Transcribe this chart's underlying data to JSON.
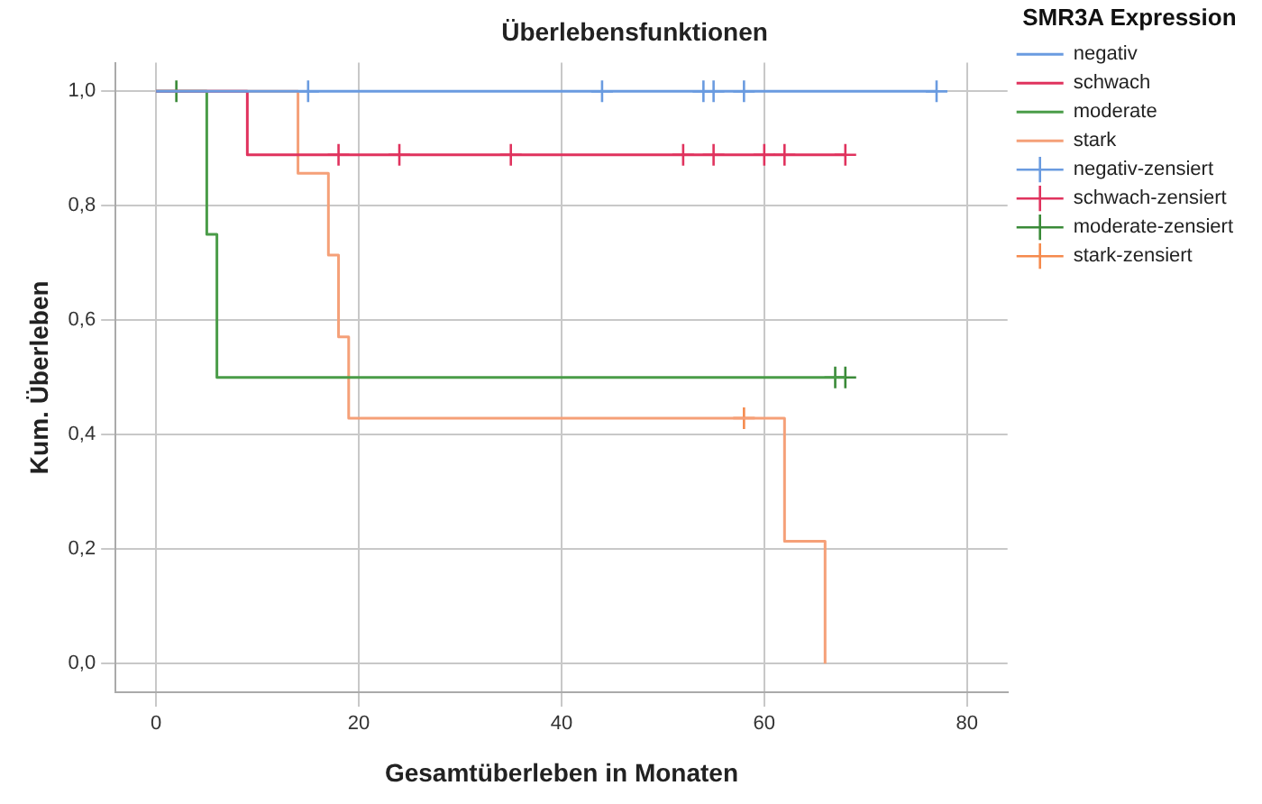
{
  "chart_data": {
    "type": "step",
    "title": "Überlebensfunktionen",
    "xlabel": "Gesamtüberleben in Monaten",
    "ylabel": "Kum. Überleben",
    "legend_title": "SMR3A Expression",
    "xlim": [
      -4,
      84
    ],
    "xticks": [
      0,
      20,
      40,
      60,
      80
    ],
    "ylim": [
      -0.05,
      1.05
    ],
    "yticks": [
      {
        "value": 0,
        "label": "0,0"
      },
      {
        "value": 0.2,
        "label": "0,2"
      },
      {
        "value": 0.4,
        "label": "0,4"
      },
      {
        "value": 0.6,
        "label": "0,6"
      },
      {
        "value": 0.8,
        "label": "0,8"
      },
      {
        "value": 1,
        "label": "1,0"
      }
    ],
    "grid": true,
    "legend": "right",
    "series": [
      {
        "name": "negativ",
        "color": "#6a9be0",
        "marker": "none",
        "x": [
          0,
          77
        ],
        "values": [
          1,
          1
        ]
      },
      {
        "name": "schwach",
        "color": "#e0335e",
        "marker": "none",
        "x": [
          0,
          9,
          68
        ],
        "values": [
          1,
          0.889,
          0.889
        ]
      },
      {
        "name": "moderate",
        "color": "#4a9c48",
        "marker": "none",
        "x": [
          0,
          5,
          6,
          68
        ],
        "values": [
          1,
          0.75,
          0.5,
          0.5
        ]
      },
      {
        "name": "stark",
        "color": "#f5a078",
        "marker": "none",
        "x": [
          0,
          14,
          17,
          18,
          19,
          62,
          66
        ],
        "values": [
          1,
          0.857,
          0.714,
          0.571,
          0.429,
          0.214,
          0
        ]
      },
      {
        "name": "negativ-zensiert",
        "type": "scatter",
        "color": "#6a9be0",
        "marker": "cross",
        "x": [
          15,
          44,
          54,
          55,
          58,
          77
        ],
        "values": [
          1,
          1,
          1,
          1,
          1,
          1
        ]
      },
      {
        "name": "schwach-zensiert",
        "type": "scatter",
        "color": "#e0335e",
        "marker": "cross",
        "x": [
          18,
          24,
          35,
          52,
          55,
          60,
          62,
          68
        ],
        "values": [
          0.889,
          0.889,
          0.889,
          0.889,
          0.889,
          0.889,
          0.889,
          0.889
        ]
      },
      {
        "name": "moderate-zensiert",
        "type": "scatter",
        "color": "#3a8a38",
        "marker": "cross",
        "x": [
          2,
          67,
          68
        ],
        "values": [
          1,
          0.5,
          0.5
        ]
      },
      {
        "name": "stark-zensiert",
        "type": "scatter",
        "color": "#f58a4d",
        "marker": "cross",
        "x": [
          58
        ],
        "values": [
          0.429
        ]
      }
    ]
  }
}
